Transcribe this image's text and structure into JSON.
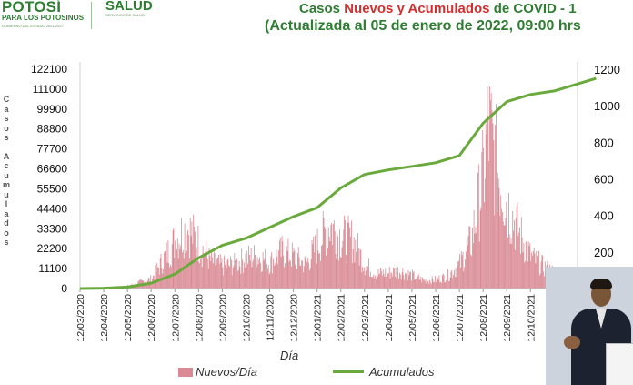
{
  "header": {
    "logo_main": "POTOSÍ",
    "logo_sub": "PARA LOS POTOSINOS",
    "logo_tiny": "GOBIERNO DEL ESTADO 2021-2027",
    "salud": "SALUD",
    "salud_sub": "SERVICIOS DE SALUD",
    "title_line1_prefix": "Casos ",
    "title_line1_red": "Nuevos y Acumulados",
    "title_line1_suffix": " de COVID - 1",
    "title_line2": "(Actualizada al 05 de enero de 2022, 09:00 hrs"
  },
  "colors": {
    "bars": "#d98a94",
    "line": "#6aaa3c",
    "title_green": "#2e7d32",
    "title_red": "#d32f2f"
  },
  "chart_data": {
    "type": "bar+line",
    "title": "Casos Nuevos y Acumulados de COVID - 1",
    "xlabel": "Día",
    "ylabel_left": "Casos Acumulados",
    "y_left_ticks": [
      0,
      11100,
      22200,
      33300,
      44400,
      55500,
      66600,
      77700,
      88800,
      99900,
      111000,
      122100
    ],
    "y_left_range": [
      0,
      122100
    ],
    "y_right_ticks": [
      200,
      400,
      600,
      800,
      1000,
      1200
    ],
    "y_right_range": [
      0,
      1200
    ],
    "x_ticks": [
      "12/03/2020",
      "12/04/2020",
      "12/05/2020",
      "12/06/2020",
      "12/07/2020",
      "12/08/2020",
      "12/09/2020",
      "12/10/2020",
      "12/11/2020",
      "12/12/2020",
      "12/01/2021",
      "12/02/2021",
      "12/03/2021",
      "12/04/2021",
      "12/05/2021",
      "12/06/2021",
      "12/07/2021",
      "12/08/2021",
      "12/09/2021",
      "12/10/2021",
      "12/11/2021"
    ],
    "series": [
      {
        "name": "Nuevos/Día",
        "type": "bar",
        "axis": "right",
        "monthly_profile": [
          [
            0,
            0
          ],
          [
            1,
            2
          ],
          [
            2,
            15
          ],
          [
            3,
            60
          ],
          [
            4,
            300
          ],
          [
            4.5,
            380
          ],
          [
            5,
            280
          ],
          [
            5.5,
            170
          ],
          [
            6,
            140
          ],
          [
            6.5,
            150
          ],
          [
            7,
            190
          ],
          [
            7.5,
            200
          ],
          [
            8,
            160
          ],
          [
            8.5,
            230
          ],
          [
            9,
            200
          ],
          [
            9.5,
            150
          ],
          [
            10,
            270
          ],
          [
            10.5,
            400
          ],
          [
            11,
            320
          ],
          [
            11.5,
            300
          ],
          [
            12,
            150
          ],
          [
            12.5,
            90
          ],
          [
            13,
            100
          ],
          [
            13.5,
            110
          ],
          [
            14,
            80
          ],
          [
            14.5,
            50
          ],
          [
            15,
            55
          ],
          [
            15.5,
            80
          ],
          [
            16,
            150
          ],
          [
            16.5,
            300
          ],
          [
            17,
            700
          ],
          [
            17.2,
            1020
          ],
          [
            17.5,
            800
          ],
          [
            18,
            530
          ],
          [
            18.5,
            350
          ],
          [
            19,
            200
          ],
          [
            19.5,
            140
          ],
          [
            20,
            100
          ],
          [
            20.5,
            80
          ],
          [
            21,
            100
          ]
        ]
      },
      {
        "name": "Acumulados",
        "type": "line",
        "axis": "left",
        "points": [
          [
            "12/03/2020",
            0
          ],
          [
            "12/04/2020",
            200
          ],
          [
            "12/05/2020",
            800
          ],
          [
            "12/06/2020",
            3000
          ],
          [
            "12/07/2020",
            8000
          ],
          [
            "12/08/2020",
            17000
          ],
          [
            "12/09/2020",
            24000
          ],
          [
            "12/10/2020",
            28000
          ],
          [
            "12/11/2020",
            34000
          ],
          [
            "12/12/2020",
            40000
          ],
          [
            "12/01/2021",
            45000
          ],
          [
            "12/02/2021",
            56000
          ],
          [
            "12/03/2021",
            63500
          ],
          [
            "12/04/2021",
            66000
          ],
          [
            "12/05/2021",
            68000
          ],
          [
            "12/06/2021",
            70000
          ],
          [
            "12/07/2021",
            74000
          ],
          [
            "12/08/2021",
            92000
          ],
          [
            "12/09/2021",
            104000
          ],
          [
            "12/10/2021",
            108000
          ],
          [
            "12/11/2021",
            110000
          ],
          [
            "05/01/2022",
            117000
          ]
        ]
      }
    ],
    "legend": [
      "Nuevos/Día",
      "Acumulados"
    ],
    "legend_position": "bottom",
    "grid": false
  }
}
